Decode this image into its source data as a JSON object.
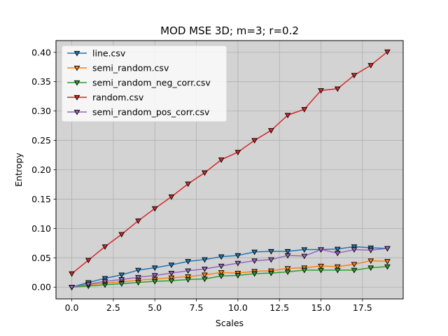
{
  "chart_data": {
    "type": "line",
    "title": "MOD MSE 3D; m=3; r=0.2",
    "xlabel": "Scales",
    "ylabel": "Entropy",
    "xlim": [
      -0.95,
      19.95
    ],
    "ylim": [
      -0.02,
      0.42
    ],
    "xticks": [
      0.0,
      2.5,
      5.0,
      7.5,
      10.0,
      12.5,
      15.0,
      17.5
    ],
    "xtick_labels": [
      "0.0",
      "2.5",
      "5.0",
      "7.5",
      "10.0",
      "12.5",
      "15.0",
      "17.5"
    ],
    "yticks": [
      0.0,
      0.05,
      0.1,
      0.15,
      0.2,
      0.25,
      0.3,
      0.35,
      0.4
    ],
    "ytick_labels": [
      "0.00",
      "0.05",
      "0.10",
      "0.15",
      "0.20",
      "0.25",
      "0.30",
      "0.35",
      "0.40"
    ],
    "grid": true,
    "legend_position": "top-left",
    "background": "#d3d3d3",
    "marker": "triangle-down",
    "x": [
      0,
      1,
      2,
      3,
      4,
      5,
      6,
      7,
      8,
      9,
      10,
      11,
      12,
      13,
      14,
      15,
      16,
      17,
      18,
      19
    ],
    "series": [
      {
        "name": "line.csv",
        "color": "#1f77b4",
        "values": [
          0.0,
          0.008,
          0.015,
          0.021,
          0.029,
          0.033,
          0.038,
          0.044,
          0.047,
          0.052,
          0.054,
          0.06,
          0.061,
          0.061,
          0.064,
          0.064,
          0.065,
          0.069,
          0.067,
          0.066
        ]
      },
      {
        "name": "semi_random.csv",
        "color": "#ff7f0e",
        "values": [
          0.0,
          0.004,
          0.007,
          0.009,
          0.012,
          0.014,
          0.016,
          0.018,
          0.021,
          0.025,
          0.024,
          0.027,
          0.028,
          0.032,
          0.033,
          0.036,
          0.035,
          0.039,
          0.045,
          0.044
        ]
      },
      {
        "name": "semi_random_neg_corr.csv",
        "color": "#2ca02c",
        "values": [
          0.0,
          0.002,
          0.004,
          0.006,
          0.008,
          0.01,
          0.011,
          0.013,
          0.014,
          0.019,
          0.02,
          0.023,
          0.024,
          0.026,
          0.029,
          0.029,
          0.029,
          0.029,
          0.033,
          0.035
        ]
      },
      {
        "name": "random.csv",
        "color": "#d62728",
        "values": [
          0.023,
          0.046,
          0.069,
          0.09,
          0.113,
          0.134,
          0.154,
          0.176,
          0.195,
          0.217,
          0.23,
          0.25,
          0.267,
          0.293,
          0.303,
          0.335,
          0.338,
          0.361,
          0.378,
          0.401
        ]
      },
      {
        "name": "semi_random_pos_corr.csv",
        "color": "#9467bd",
        "values": [
          0.0,
          0.005,
          0.01,
          0.013,
          0.017,
          0.02,
          0.024,
          0.028,
          0.031,
          0.036,
          0.041,
          0.045,
          0.047,
          0.054,
          0.053,
          0.064,
          0.058,
          0.064,
          0.063,
          0.066
        ]
      }
    ]
  }
}
